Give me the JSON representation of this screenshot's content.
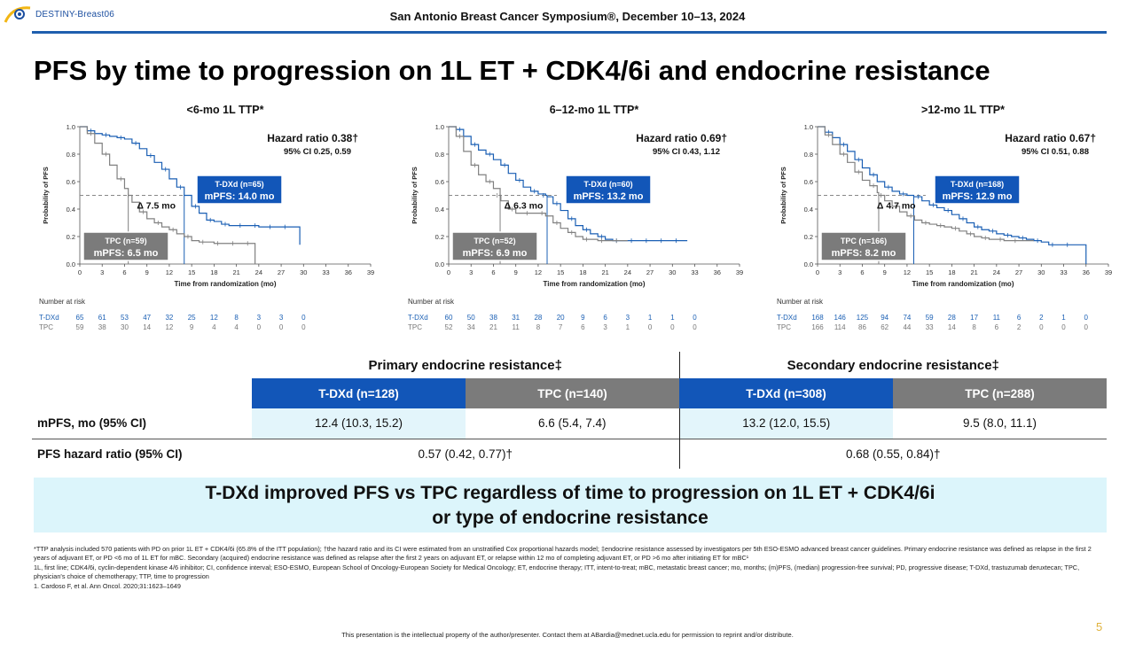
{
  "header": {
    "logo_text": "DESTINY-Breast06",
    "conference": "San Antonio Breast Cancer Symposium®, December 10–13, 2024"
  },
  "title": "PFS by time to progression on 1L ET + CDK4/6i and endocrine resistance",
  "colors": {
    "tdxd": "#1a5fb4",
    "tpc": "#808080",
    "rule": "#1f5fae",
    "takeaway_bg": "#dcf5fb"
  },
  "chart_data": [
    {
      "type": "line",
      "title": "<6-mo 1L TTP*",
      "hazard_ratio": "Hazard ratio 0.38†",
      "ci": "95% CI 0.25, 0.59",
      "xlabel": "Time from randomization (mo)",
      "ylabel": "Probability of PFS",
      "xlim": [
        0,
        39
      ],
      "ylim": [
        0,
        1.0
      ],
      "xticks": [
        "0",
        "3",
        "6",
        "9",
        "12",
        "15",
        "18",
        "21",
        "24",
        "27",
        "30",
        "33",
        "36",
        "39"
      ],
      "yticks": [
        "0.0",
        "0.2",
        "0.4",
        "0.6",
        "0.8",
        "1.0"
      ],
      "median_line": 0.5,
      "delta_label": "Δ 7.5 mo",
      "series": [
        {
          "name": "T-DXd (n=65)",
          "median_label": "mPFS: 14.0 mo",
          "median": 14.0,
          "color": "#1a5fb4",
          "x": [
            0,
            1,
            2,
            3,
            4,
            5,
            6,
            7,
            8,
            9,
            10,
            11,
            12,
            13,
            14,
            15,
            16,
            17,
            18,
            19,
            20,
            21,
            22,
            23,
            24,
            25,
            26,
            27,
            28,
            29,
            29.5
          ],
          "y": [
            1.0,
            0.97,
            0.95,
            0.94,
            0.93,
            0.92,
            0.91,
            0.88,
            0.84,
            0.79,
            0.74,
            0.69,
            0.62,
            0.56,
            0.5,
            0.42,
            0.37,
            0.32,
            0.31,
            0.29,
            0.28,
            0.28,
            0.28,
            0.28,
            0.27,
            0.27,
            0.27,
            0.27,
            0.27,
            0.27,
            0.14
          ]
        },
        {
          "name": "TPC (n=59)",
          "median_label": "mPFS: 6.5 mo",
          "median": 6.5,
          "color": "#808080",
          "x": [
            0,
            1,
            2,
            3,
            4,
            5,
            6,
            6.5,
            7,
            8,
            9,
            10,
            11,
            12,
            13,
            14,
            15,
            16,
            17,
            18,
            19,
            20,
            21,
            22,
            23,
            23.5
          ],
          "y": [
            1.0,
            0.95,
            0.88,
            0.8,
            0.72,
            0.62,
            0.55,
            0.5,
            0.45,
            0.38,
            0.33,
            0.3,
            0.27,
            0.25,
            0.22,
            0.2,
            0.17,
            0.16,
            0.16,
            0.15,
            0.15,
            0.15,
            0.15,
            0.15,
            0.15,
            0.0
          ]
        }
      ],
      "risk_table": {
        "title": "Number at risk",
        "rows": [
          {
            "label": "T-DXd",
            "values": [
              "65",
              "61",
              "53",
              "47",
              "32",
              "25",
              "12",
              "8",
              "3",
              "3",
              "0"
            ]
          },
          {
            "label": "TPC",
            "values": [
              "59",
              "38",
              "30",
              "14",
              "12",
              "9",
              "4",
              "4",
              "0",
              "0",
              "0"
            ]
          }
        ]
      }
    },
    {
      "type": "line",
      "title": "6–12-mo 1L TTP*",
      "hazard_ratio": "Hazard ratio 0.69†",
      "ci": "95% CI 0.43, 1.12",
      "xlabel": "Time from randomization (mo)",
      "ylabel": "Probability of PFS",
      "xlim": [
        0,
        39
      ],
      "ylim": [
        0,
        1.0
      ],
      "xticks": [
        "0",
        "3",
        "6",
        "9",
        "12",
        "15",
        "18",
        "21",
        "24",
        "27",
        "30",
        "33",
        "36",
        "39"
      ],
      "yticks": [
        "0.0",
        "0.2",
        "0.4",
        "0.6",
        "0.8",
        "1.0"
      ],
      "median_line": 0.5,
      "delta_label": "Δ 6.3 mo",
      "series": [
        {
          "name": "T-DXd (n=60)",
          "median_label": "mPFS: 13.2 mo",
          "median": 13.2,
          "color": "#1a5fb4",
          "x": [
            0,
            1,
            2,
            3,
            4,
            5,
            6,
            7,
            8,
            9,
            10,
            11,
            12,
            13,
            13.2,
            14,
            15,
            16,
            17,
            18,
            19,
            20,
            21,
            22,
            23,
            24,
            25,
            26,
            27,
            28,
            29,
            30,
            31,
            32
          ],
          "y": [
            1.0,
            0.98,
            0.93,
            0.87,
            0.83,
            0.8,
            0.76,
            0.72,
            0.66,
            0.61,
            0.56,
            0.53,
            0.51,
            0.5,
            0.49,
            0.44,
            0.39,
            0.33,
            0.28,
            0.25,
            0.22,
            0.2,
            0.18,
            0.17,
            0.17,
            0.17,
            0.17,
            0.17,
            0.17,
            0.17,
            0.17,
            0.17,
            0.17,
            0.17
          ]
        },
        {
          "name": "TPC (n=52)",
          "median_label": "mPFS: 6.9 mo",
          "median": 6.9,
          "color": "#808080",
          "x": [
            0,
            1,
            2,
            3,
            4,
            5,
            6,
            6.9,
            7,
            8,
            9,
            10,
            11,
            12,
            13,
            14,
            15,
            16,
            17,
            18,
            19,
            20,
            21,
            22,
            23,
            24
          ],
          "y": [
            1.0,
            0.93,
            0.82,
            0.72,
            0.65,
            0.6,
            0.55,
            0.5,
            0.46,
            0.4,
            0.37,
            0.37,
            0.37,
            0.37,
            0.35,
            0.3,
            0.26,
            0.23,
            0.2,
            0.18,
            0.18,
            0.17,
            0.17,
            0.17,
            0.17,
            0.17
          ]
        }
      ],
      "risk_table": {
        "title": "Number at risk",
        "rows": [
          {
            "label": "T-DXd",
            "values": [
              "60",
              "50",
              "38",
              "31",
              "28",
              "20",
              "9",
              "6",
              "3",
              "1",
              "1",
              "0"
            ]
          },
          {
            "label": "TPC",
            "values": [
              "52",
              "34",
              "21",
              "11",
              "8",
              "7",
              "6",
              "3",
              "1",
              "0",
              "0",
              "0"
            ]
          }
        ]
      }
    },
    {
      "type": "line",
      "title": ">12-mo 1L TTP*",
      "hazard_ratio": "Hazard ratio 0.67†",
      "ci": "95% CI 0.51, 0.88",
      "xlabel": "Time from randomization (mo)",
      "ylabel": "Probability of PFS",
      "xlim": [
        0,
        39
      ],
      "ylim": [
        0,
        1.0
      ],
      "xticks": [
        "0",
        "3",
        "6",
        "9",
        "12",
        "15",
        "18",
        "21",
        "24",
        "27",
        "30",
        "33",
        "36",
        "39"
      ],
      "yticks": [
        "0.0",
        "0.2",
        "0.4",
        "0.6",
        "0.8",
        "1.0"
      ],
      "median_line": 0.5,
      "delta_label": "Δ 4.7 mo",
      "series": [
        {
          "name": "T-DXd (n=168)",
          "median_label": "mPFS: 12.9 mo",
          "median": 12.9,
          "color": "#1a5fb4",
          "x": [
            0,
            1,
            2,
            3,
            4,
            5,
            6,
            7,
            8,
            9,
            10,
            11,
            12,
            12.9,
            14,
            15,
            16,
            17,
            18,
            19,
            20,
            21,
            22,
            23,
            24,
            25,
            26,
            27,
            28,
            29,
            30,
            31,
            32,
            33,
            34,
            35,
            36
          ],
          "y": [
            1.0,
            0.96,
            0.92,
            0.87,
            0.82,
            0.76,
            0.7,
            0.65,
            0.6,
            0.56,
            0.53,
            0.51,
            0.5,
            0.49,
            0.46,
            0.43,
            0.41,
            0.39,
            0.36,
            0.33,
            0.3,
            0.27,
            0.25,
            0.24,
            0.22,
            0.21,
            0.2,
            0.19,
            0.18,
            0.17,
            0.16,
            0.14,
            0.14,
            0.14,
            0.14,
            0.14,
            0.0
          ]
        },
        {
          "name": "TPC (n=166)",
          "median_label": "mPFS: 8.2 mo",
          "median": 8.2,
          "color": "#808080",
          "x": [
            0,
            1,
            2,
            3,
            4,
            5,
            6,
            7,
            8,
            8.2,
            9,
            10,
            11,
            12,
            13,
            14,
            15,
            16,
            17,
            18,
            19,
            20,
            21,
            22,
            23,
            24,
            25,
            26,
            27,
            28,
            29
          ],
          "y": [
            1.0,
            0.94,
            0.87,
            0.8,
            0.74,
            0.67,
            0.61,
            0.57,
            0.52,
            0.5,
            0.46,
            0.42,
            0.38,
            0.35,
            0.32,
            0.3,
            0.29,
            0.28,
            0.27,
            0.26,
            0.24,
            0.22,
            0.2,
            0.19,
            0.18,
            0.18,
            0.17,
            0.17,
            0.17,
            0.17,
            0.17
          ]
        }
      ],
      "risk_table": {
        "title": "Number at risk",
        "rows": [
          {
            "label": "T-DXd",
            "values": [
              "168",
              "146",
              "125",
              "94",
              "74",
              "59",
              "28",
              "17",
              "11",
              "6",
              "2",
              "1",
              "0"
            ]
          },
          {
            "label": "TPC",
            "values": [
              "166",
              "114",
              "86",
              "62",
              "44",
              "33",
              "14",
              "8",
              "6",
              "2",
              "0",
              "0",
              "0"
            ]
          }
        ]
      }
    }
  ],
  "results_table": {
    "primary_header": "Primary endocrine resistance‡",
    "secondary_header": "Secondary endocrine resistance‡",
    "columns": [
      "T-DXd (n=128)",
      "TPC (n=140)",
      "T-DXd (n=308)",
      "TPC (n=288)"
    ],
    "rows": [
      {
        "label": "mPFS, mo (95% CI)",
        "values": [
          "12.4 (10.3, 15.2)",
          "6.6 (5.4, 7.4)",
          "13.2 (12.0, 15.5)",
          "9.5 (8.0, 11.1)"
        ]
      },
      {
        "label": "PFS hazard ratio (95% CI)",
        "primary": "0.57 (0.42, 0.77)†",
        "secondary": "0.68 (0.55, 0.84)†"
      }
    ]
  },
  "takeaway": {
    "line1": "T-DXd improved PFS vs TPC regardless of time to progression on 1L ET + CDK4/6i",
    "line2": "or type of endocrine resistance"
  },
  "footnotes": [
    "*TTP analysis included 570 patients with PD on prior 1L ET + CDK4/6i (65.8% of the ITT population); †the hazard ratio and its CI were estimated from an unstratified Cox proportional hazards model; ‡endocrine resistance assessed by investigators per 5th ESO-ESMO advanced breast cancer guidelines. Primary endocrine resistance was defined as relapse in the first 2 years of adjuvant ET, or PD <6 mo of 1L ET for mBC. Secondary (acquired) endocrine resistance was defined as relapse after the first 2 years on adjuvant ET, or relapse within 12 mo of completing adjuvant ET, or PD >6 mo after initiating ET for mBC¹",
    "1L, first line; CDK4/6i, cyclin-dependent kinase 4/6 inhibitor; CI, confidence interval; ESO-ESMO, European School of Oncology-European Society for Medical Oncology; ET, endocrine therapy; ITT, intent-to-treat; mBC, metastatic breast cancer; mo, months; (m)PFS, (median) progression-free survival; PD, progressive disease; T-DXd, trastuzumab deruxtecan; TPC, physician's choice of chemotherapy; TTP, time to progression",
    "1. Cardoso F, et al. Ann Oncol. 2020;31:1623–1649"
  ],
  "footer": "This presentation is the intellectual property of the author/presenter. Contact them at ABardia@mednet.ucla.edu for permission to reprint and/or distribute.",
  "page_number": "5"
}
